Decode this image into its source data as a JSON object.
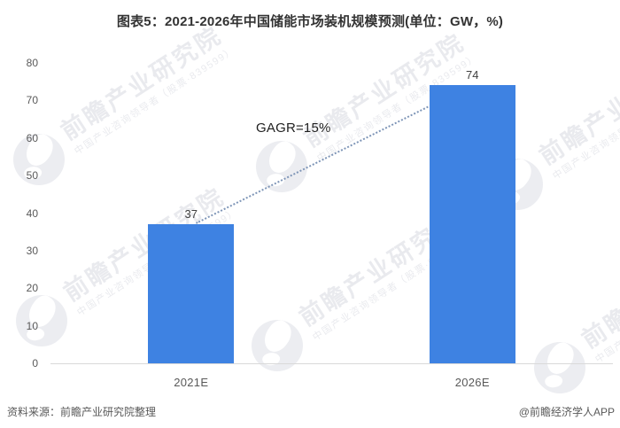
{
  "title": "图表5：2021-2026年中国储能市场装机规模预测(单位：GW，%)",
  "annotation": {
    "cagr_label": "GAGR=15%"
  },
  "footer": {
    "source": "资料来源：前瞻产业研究院整理",
    "credit": "@前瞻经济学人APP"
  },
  "watermark": {
    "brand": "前瞻产业研究院",
    "tagline": "中国产业咨询领导者（股票·839599）"
  },
  "colors": {
    "bar": "#3E82E2",
    "trend_line": "#7E95B7",
    "axis_line": "#D9D9D9",
    "tick_text": "#595959",
    "value_text": "#404040",
    "title_text": "#333333"
  },
  "chart_data": {
    "type": "bar",
    "title": "图表5：2021-2026年中国储能市场装机规模预测(单位：GW，%)",
    "categories": [
      "2021E",
      "2026E"
    ],
    "values": [
      37,
      74
    ],
    "data_labels": [
      "37",
      "74"
    ],
    "unit": "GW",
    "xlabel": "",
    "ylabel": "",
    "ylim": [
      0,
      80
    ],
    "yticks": [
      0,
      10,
      20,
      30,
      40,
      50,
      60,
      70,
      80
    ],
    "grid": false,
    "legend": null,
    "annotations": [
      {
        "text": "GAGR=15%",
        "type": "trend-line-label",
        "connects": [
          "2021E",
          "2026E"
        ]
      }
    ],
    "bar_color": "#3E82E2"
  }
}
